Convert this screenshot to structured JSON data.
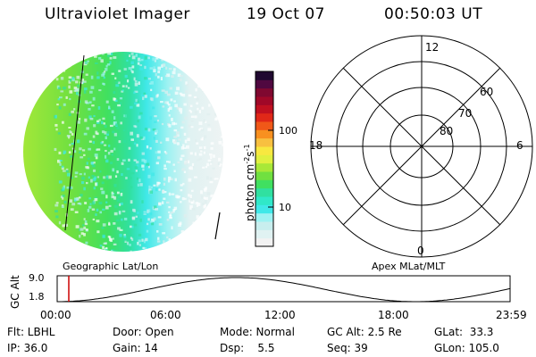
{
  "header": {
    "instrument": "Ultraviolet Imager",
    "date": "19 Oct 07",
    "time": "00:50:03 UT"
  },
  "colorbar": {
    "unit_text": "photon cm",
    "unit_exp1": "-2",
    "unit_mid": "s",
    "unit_exp2": "-1",
    "ticks": [
      "100",
      "10"
    ],
    "colors": [
      "#f2f2f2",
      "#e0f2f2",
      "#c8eeee",
      "#9ef2f2",
      "#40e8e8",
      "#30e8c8",
      "#30e0a0",
      "#40e060",
      "#70e040",
      "#a8e838",
      "#e0f040",
      "#f8e840",
      "#f8c040",
      "#f89020",
      "#f05818",
      "#e02818",
      "#c01020",
      "#a00828",
      "#800830",
      "#500840",
      "#200830"
    ]
  },
  "polar_plot": {
    "clock_labels": [
      "12",
      "18",
      "6",
      "0"
    ],
    "lat_labels": [
      "60",
      "70",
      "80"
    ]
  },
  "timeline": {
    "left_title": "Geographic Lat/Lon",
    "right_title": "Apex MLat/MLT",
    "y_label": "GC Alt",
    "y_ticks": [
      "9.0",
      "1.8"
    ],
    "x_ticks": [
      "00:00",
      "06:00",
      "12:00",
      "18:00",
      "23:59"
    ],
    "marker_color": "#cc0000"
  },
  "status": {
    "flt": "Flt: LBHL",
    "ip": "IP: 36.0",
    "door": "Door: Open",
    "gain": "Gain: 14",
    "mode": "Mode: Normal",
    "dsp": "Dsp:    5.5",
    "gc_alt": "GC Alt: 2.5 Re",
    "seq": "Seq: 39",
    "glat": "GLat:  33.3",
    "glon": "GLon: 105.0"
  }
}
